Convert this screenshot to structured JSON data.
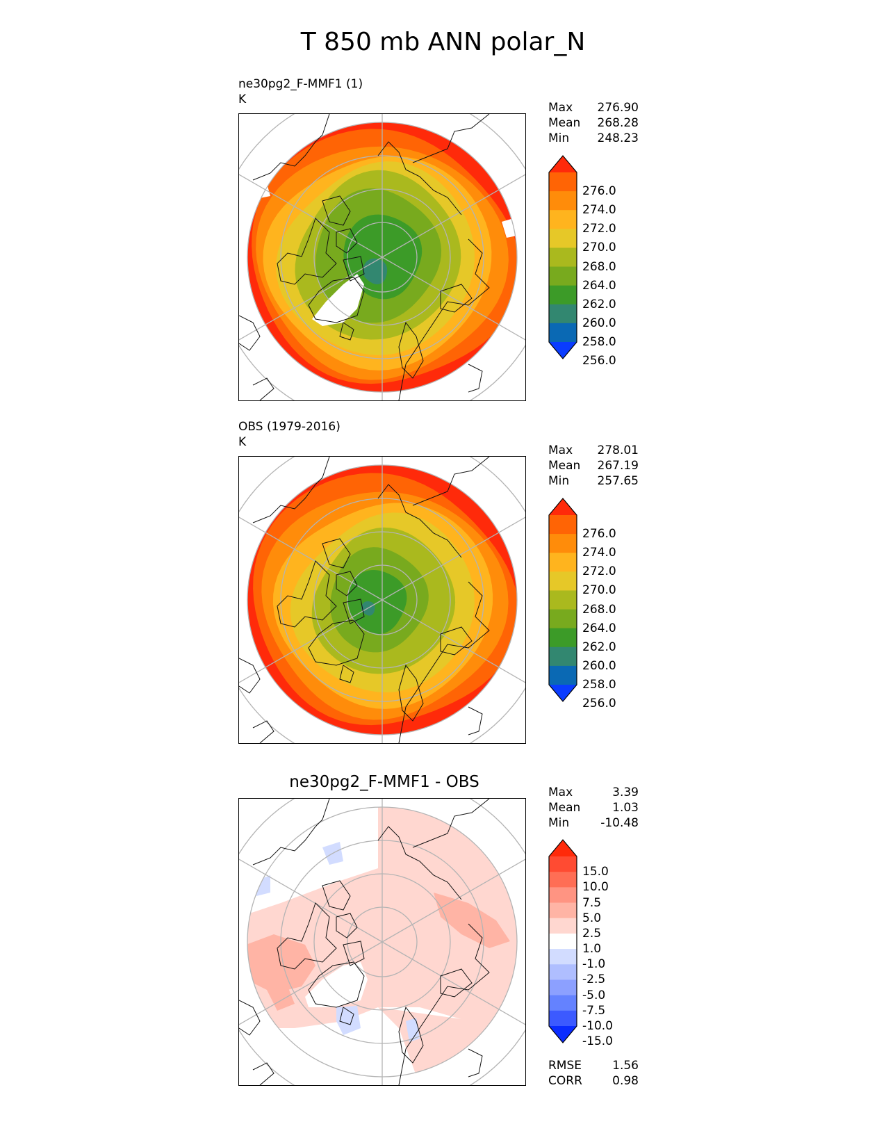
{
  "title": "T 850 mb ANN polar_N",
  "panels": [
    {
      "id": "model",
      "label_line1": "ne30pg2_F-MMF1 (1)",
      "label_line2": "K",
      "stats": {
        "max_label": "Max",
        "max": "276.90",
        "mean_label": "Mean",
        "mean": "268.28",
        "min_label": "Min",
        "min": "248.23"
      },
      "colorbar": {
        "ticks": [
          "276.0",
          "274.0",
          "272.0",
          "270.0",
          "268.0",
          "264.0",
          "262.0",
          "260.0",
          "258.0",
          "256.0"
        ],
        "colors": [
          "#ff2a0a",
          "#ff6405",
          "#ff8c0a",
          "#ffb41e",
          "#e6c828",
          "#aab91e",
          "#78aa1e",
          "#3c9b28",
          "#328770",
          "#0a69b4",
          "#0a3cff"
        ]
      }
    },
    {
      "id": "obs",
      "label_line1": "OBS (1979-2016)",
      "label_line2": "K",
      "stats": {
        "max_label": "Max",
        "max": "278.01",
        "mean_label": "Mean",
        "mean": "267.19",
        "min_label": "Min",
        "min": "257.65"
      },
      "colorbar": {
        "ticks": [
          "276.0",
          "274.0",
          "272.0",
          "270.0",
          "268.0",
          "264.0",
          "262.0",
          "260.0",
          "258.0",
          "256.0"
        ],
        "colors": [
          "#ff2a0a",
          "#ff6405",
          "#ff8c0a",
          "#ffb41e",
          "#e6c828",
          "#aab91e",
          "#78aa1e",
          "#3c9b28",
          "#328770",
          "#0a69b4",
          "#0a3cff"
        ]
      }
    },
    {
      "id": "diff",
      "title": "ne30pg2_F-MMF1 - OBS",
      "stats": {
        "max_label": "Max",
        "max": "3.39",
        "mean_label": "Mean",
        "mean": "1.03",
        "min_label": "Min",
        "min": "-10.48"
      },
      "colorbar": {
        "ticks": [
          "15.0",
          "10.0",
          "7.5",
          "5.0",
          "2.5",
          "1.0",
          "-1.0",
          "-2.5",
          "-5.0",
          "-7.5",
          "-10.0",
          "-15.0"
        ],
        "colors": [
          "#ff2a0a",
          "#ff4b32",
          "#ff6e55",
          "#ff9482",
          "#ffb4a5",
          "#ffd7d0",
          "#ffffff",
          "#d2dcff",
          "#afbeff",
          "#8ca0ff",
          "#6482ff",
          "#3c5aff",
          "#0a2cff"
        ]
      },
      "rmse_label": "RMSE",
      "rmse": "1.56",
      "corr_label": "CORR",
      "corr": "0.98"
    }
  ],
  "chart_data": [
    {
      "type": "heatmap",
      "title": "ne30pg2_F-MMF1 (1)",
      "units": "K",
      "levels": [
        256,
        258,
        260,
        262,
        264,
        268,
        270,
        272,
        274,
        276
      ],
      "rings": [
        {
          "level": 262,
          "description_value": 262
        },
        {
          "level": 264,
          "description_value": 264
        },
        {
          "level": 268,
          "description_value": 268
        },
        {
          "level": 270,
          "description_value": 270
        },
        {
          "level": 272,
          "description_value": 272
        },
        {
          "level": 274,
          "description_value": 274
        },
        {
          "level": 276,
          "description_value": 276
        }
      ],
      "max": 276.9,
      "mean": 268.28,
      "min": 248.23
    },
    {
      "type": "heatmap",
      "title": "OBS (1979-2016)",
      "units": "K",
      "levels": [
        256,
        258,
        260,
        262,
        264,
        268,
        270,
        272,
        274,
        276
      ],
      "max": 278.01,
      "mean": 267.19,
      "min": 257.65
    },
    {
      "type": "heatmap",
      "title": "ne30pg2_F-MMF1 - OBS",
      "levels": [
        -15.0,
        -10.0,
        -7.5,
        -5.0,
        -2.5,
        -1.0,
        1.0,
        2.5,
        5.0,
        7.5,
        10.0,
        15.0
      ],
      "max": 3.39,
      "mean": 1.03,
      "min": -10.48,
      "rmse": 1.56,
      "corr": 0.98
    }
  ]
}
